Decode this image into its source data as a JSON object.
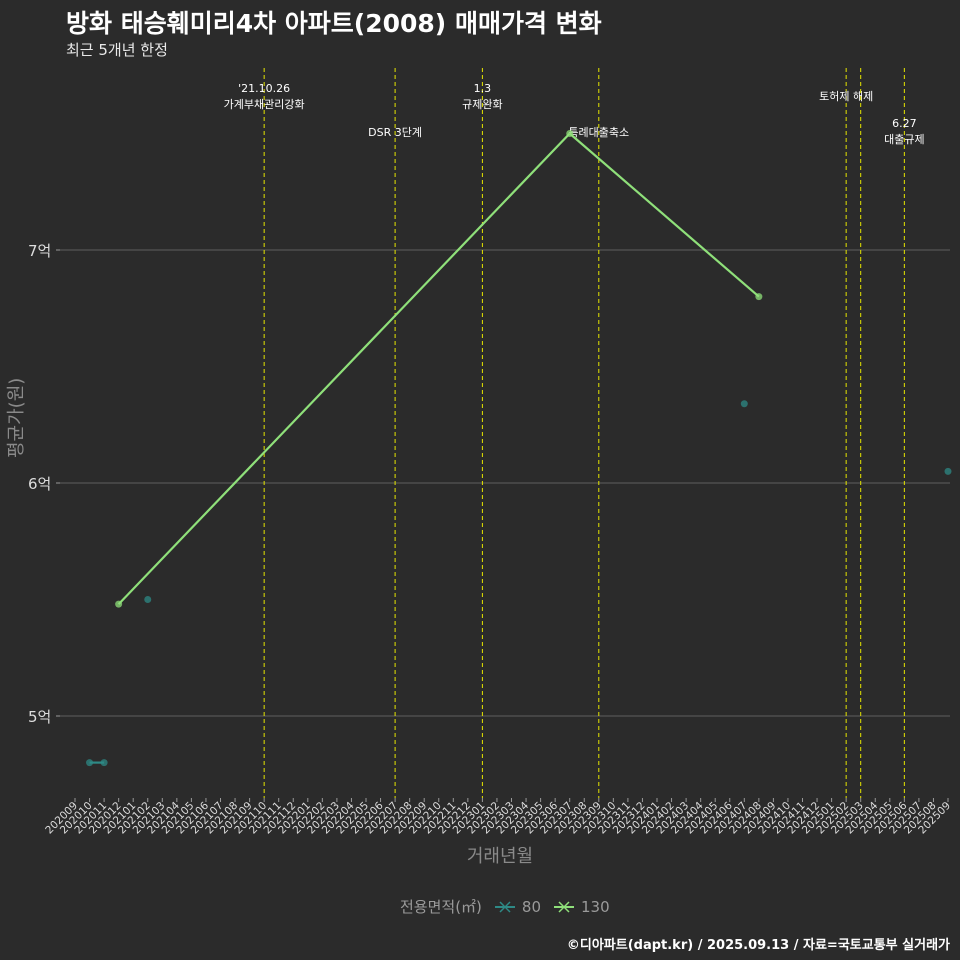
{
  "title": "방화 태승훼미리4차 아파트(2008) 매매가격 변화",
  "subtitle": "최근 5개년 한정",
  "footer": "©디아파트(dapt.kr) / 2025.09.13 / 자료=국토교통부 실거래가",
  "colors": {
    "background": "#2b2b2b",
    "grid": "#555555",
    "event_line": "#e6e600",
    "series_80": "#2e8a86",
    "series_130": "#8fe07a"
  },
  "chart_data": {
    "type": "line",
    "xlabel": "거래년월",
    "ylabel": "평균가(원)",
    "x_ticks": [
      "202009",
      "202010",
      "202011",
      "202012",
      "202101",
      "202102",
      "202103",
      "202104",
      "202105",
      "202106",
      "202107",
      "202108",
      "202109",
      "202110",
      "202111",
      "202112",
      "202201",
      "202202",
      "202203",
      "202204",
      "202205",
      "202206",
      "202207",
      "202208",
      "202209",
      "202210",
      "202211",
      "202212",
      "202301",
      "202302",
      "202303",
      "202304",
      "202305",
      "202306",
      "202307",
      "202308",
      "202309",
      "202310",
      "202311",
      "202312",
      "202401",
      "202402",
      "202403",
      "202404",
      "202405",
      "202406",
      "202407",
      "202408",
      "202409",
      "202410",
      "202411",
      "202412",
      "202501",
      "202502",
      "202503",
      "202504",
      "202505",
      "202506",
      "202507",
      "202508",
      "202509"
    ],
    "y_ticks": [
      {
        "value": 5,
        "label": "5억"
      },
      {
        "value": 6,
        "label": "6억"
      },
      {
        "value": 7,
        "label": "7억"
      }
    ],
    "ylim": [
      4.68,
      7.82
    ],
    "legend_title": "전용면적(㎡)",
    "series": [
      {
        "name": "80",
        "color": "#2e8a86",
        "points": [
          {
            "x": "202010",
            "y": 4.8
          },
          {
            "x": "202011",
            "y": 4.8
          },
          {
            "x": "202102",
            "y": 5.5
          },
          {
            "x": "202407",
            "y": 6.34
          },
          {
            "x": "202509",
            "y": 6.05
          }
        ]
      },
      {
        "name": "130",
        "color": "#8fe07a",
        "points": [
          {
            "x": "202012",
            "y": 5.48
          },
          {
            "x": "202307",
            "y": 7.5
          },
          {
            "x": "202408",
            "y": 6.8
          }
        ]
      }
    ],
    "events": [
      {
        "x": "202110",
        "lines": [
          "'21.10.26",
          "가계부채관리강화"
        ],
        "row": 0
      },
      {
        "x": "202207",
        "lines": [
          "DSR 3단계"
        ],
        "row": 2
      },
      {
        "x": "202301",
        "lines": [
          "1.3",
          "규제완화"
        ],
        "row": 0
      },
      {
        "x": "202309",
        "lines": [
          "특례대출축소"
        ],
        "row": 2
      },
      {
        "x": "202502",
        "lines": [
          "토허제 해제"
        ],
        "row": 1
      },
      {
        "x": "202503",
        "lines": [],
        "row": 1
      },
      {
        "x": "202506",
        "lines": [
          "6.27",
          "대출규제"
        ],
        "row": 1.6
      }
    ]
  }
}
